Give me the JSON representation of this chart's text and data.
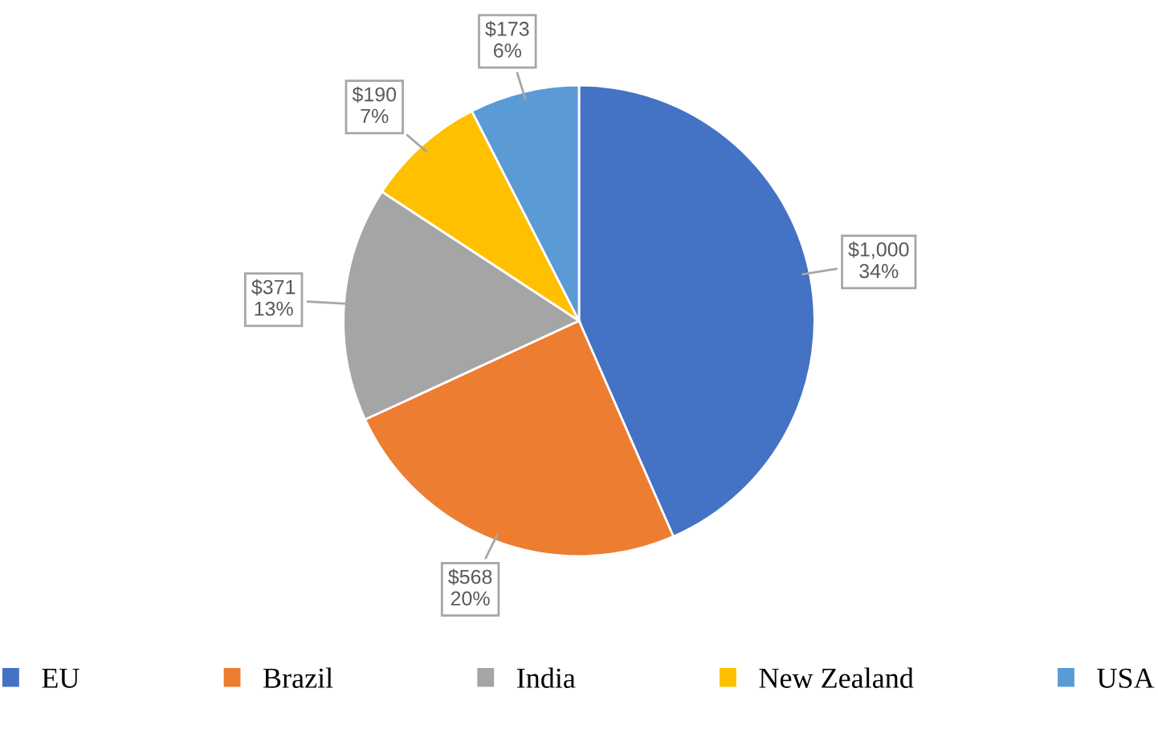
{
  "chart_data": {
    "type": "pie",
    "categories": [
      "EU",
      "Brazil",
      "India",
      "New Zealand",
      "USA"
    ],
    "values": [
      1000,
      568,
      371,
      190,
      173
    ],
    "colors": [
      "#4472c4",
      "#ed7d31",
      "#a5a5a5",
      "#ffc000",
      "#5b9bd5"
    ],
    "value_labels": [
      "$1,000\n34%",
      "$568\n20%",
      "$371\n13%",
      "$190\n7%",
      "$173\n6%"
    ],
    "legend": "bottom"
  }
}
